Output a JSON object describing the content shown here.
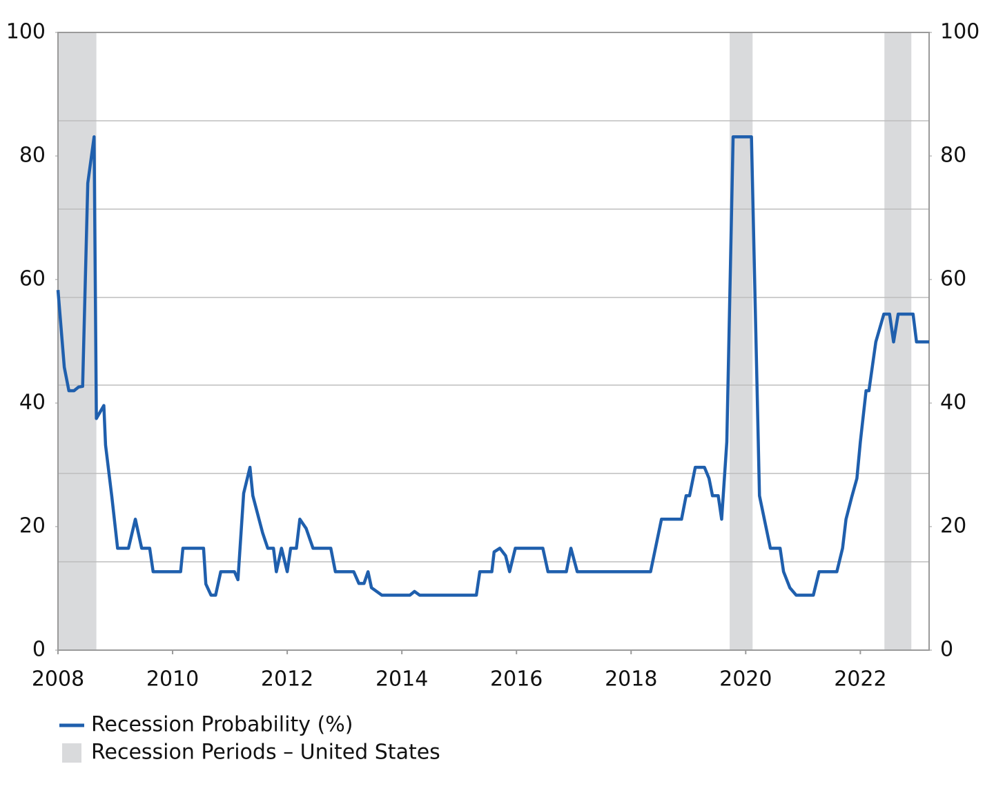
{
  "chart_data": {
    "type": "line",
    "x": [
      2008.0,
      2008.11,
      2008.19,
      2008.28,
      2008.36,
      2008.43,
      2008.52,
      2008.63,
      2008.67,
      2008.8,
      2008.83,
      2008.94,
      2009.04,
      2009.23,
      2009.35,
      2009.46,
      2009.6,
      2009.66,
      2010.14,
      2010.18,
      2010.54,
      2010.58,
      2010.67,
      2010.75,
      2010.84,
      2011.08,
      2011.14,
      2011.24,
      2011.35,
      2011.4,
      2011.57,
      2011.66,
      2011.76,
      2011.81,
      2011.9,
      2012.0,
      2012.06,
      2012.16,
      2012.22,
      2012.33,
      2012.45,
      2012.76,
      2012.84,
      2013.16,
      2013.25,
      2013.34,
      2013.41,
      2013.47,
      2013.65,
      2014.14,
      2014.22,
      2014.31,
      2015.3,
      2015.36,
      2015.57,
      2015.61,
      2015.71,
      2015.81,
      2015.88,
      2015.98,
      2016.46,
      2016.55,
      2016.87,
      2016.95,
      2017.06,
      2018.34,
      2018.53,
      2018.88,
      2018.96,
      2019.02,
      2019.12,
      2019.28,
      2019.36,
      2019.42,
      2019.52,
      2019.58,
      2019.67,
      2019.78,
      2020.1,
      2020.24,
      2020.43,
      2020.6,
      2020.66,
      2020.77,
      2020.88,
      2021.18,
      2021.28,
      2021.59,
      2021.69,
      2021.75,
      2021.85,
      2021.94,
      2022.0,
      2022.1,
      2022.15,
      2022.27,
      2022.41,
      2022.51,
      2022.58,
      2022.66,
      2022.92,
      2022.98,
      2023.2
    ],
    "series": [
      {
        "name": "Recession Probability (%)",
        "color": "#1f5fad",
        "values": [
          58.3,
          45.8,
          42,
          42,
          42.6,
          42.7,
          75.6,
          83.1,
          37.5,
          39.6,
          33.2,
          24.8,
          16.5,
          16.5,
          21.2,
          16.5,
          16.5,
          12.7,
          12.7,
          16.5,
          16.5,
          10.7,
          8.9,
          8.9,
          12.7,
          12.7,
          11.4,
          25.4,
          29.6,
          25,
          19,
          16.5,
          16.5,
          12.7,
          16.5,
          12.7,
          16.5,
          16.5,
          21.2,
          19.7,
          16.5,
          16.5,
          12.7,
          12.7,
          10.8,
          10.8,
          12.7,
          10.1,
          8.9,
          8.9,
          9.5,
          8.9,
          8.9,
          12.7,
          12.7,
          15.9,
          16.5,
          15.3,
          12.7,
          16.5,
          16.5,
          12.7,
          12.7,
          16.5,
          12.7,
          12.7,
          21.2,
          21.2,
          25,
          25,
          29.6,
          29.6,
          27.8,
          25,
          25,
          21.2,
          33.7,
          83.1,
          83.1,
          25,
          16.5,
          16.5,
          12.7,
          10.1,
          8.9,
          8.9,
          12.7,
          12.7,
          16.5,
          21.2,
          24.8,
          27.8,
          33.7,
          42,
          42,
          49.9,
          54.4,
          54.4,
          49.9,
          54.4,
          54.4,
          49.9,
          49.9
        ]
      }
    ],
    "recessions": {
      "name": "Recession Periods – United States",
      "color": "#d9dadc",
      "periods": [
        [
          2008.0,
          2008.67
        ],
        [
          2019.72,
          2020.12
        ],
        [
          2022.42,
          2022.89
        ]
      ]
    },
    "xlim": [
      2008,
      2023.2
    ],
    "xticks": [
      2008,
      2010,
      2012,
      2014,
      2016,
      2018,
      2020,
      2022
    ],
    "ylim": [
      0,
      100
    ],
    "yticks": [
      0,
      20,
      40,
      60,
      80,
      100
    ],
    "y2lim": [
      0,
      100
    ],
    "y2ticks": [
      0,
      20,
      40,
      60,
      80,
      100
    ],
    "ygrid": [
      14.3,
      28.6,
      42.9,
      57.1,
      71.4,
      85.7
    ]
  }
}
